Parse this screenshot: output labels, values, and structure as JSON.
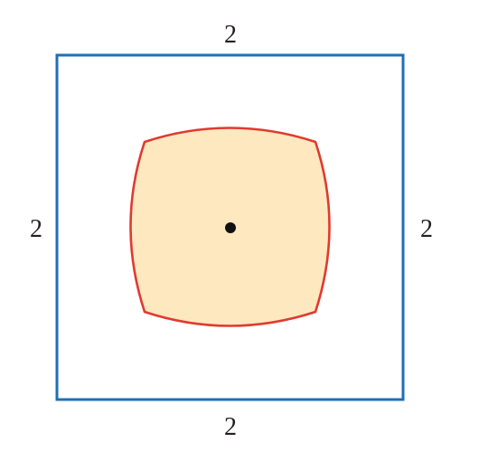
{
  "diagram": {
    "labels": {
      "top": "2",
      "bottom": "2",
      "left": "2",
      "right": "2"
    },
    "colors": {
      "square_stroke": "#1f6fb5",
      "curve_stroke": "#e03a2f",
      "curve_fill": "#fde8c0",
      "center_dot": "#111111"
    }
  }
}
